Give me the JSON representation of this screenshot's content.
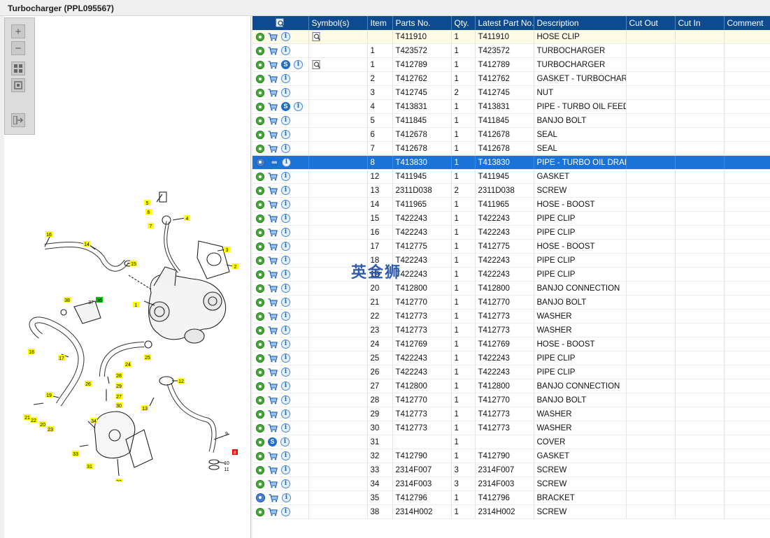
{
  "window": {
    "title": "Turbocharger (PPL095567)"
  },
  "toolbar": {
    "zoom_in": "+",
    "zoom_out": "−"
  },
  "diagram": {
    "callouts": [
      "1",
      "2",
      "3",
      "4",
      "5",
      "6",
      "7",
      "8",
      "9",
      "10",
      "11",
      "12",
      "13",
      "14",
      "15",
      "16",
      "17",
      "18",
      "19",
      "20",
      "21",
      "22",
      "23",
      "24",
      "25",
      "26",
      "27",
      "28",
      "29",
      "30",
      "31",
      "32",
      "33",
      "34",
      "36",
      "37",
      "38"
    ],
    "callout_color_default": "#ffff00",
    "callout_color_highlight": "#00cc00",
    "callout_color_selected": "#ff0000"
  },
  "grid": {
    "columns": [
      "",
      "Symbol(s)",
      "Item",
      "Parts No.",
      "Qty.",
      "Latest Part No.",
      "Description",
      "Cut Out",
      "Cut In",
      "Comment"
    ],
    "rows": [
      {
        "icons": "gear,cart,info",
        "symbol": "mag",
        "item": "",
        "part": "T411910",
        "qty": "1",
        "latest": "T411910",
        "desc": "HOSE CLIP"
      },
      {
        "icons": "gear,cart,info",
        "symbol": "",
        "item": "1",
        "part": "T423572",
        "qty": "1",
        "latest": "T423572",
        "desc": "TURBOCHARGER"
      },
      {
        "icons": "gear,cart,s,info",
        "symbol": "mag",
        "item": "1",
        "part": "T412789",
        "qty": "1",
        "latest": "T412789",
        "desc": "TURBOCHARGER"
      },
      {
        "icons": "gear,cart,info",
        "symbol": "",
        "item": "2",
        "part": "T412762",
        "qty": "1",
        "latest": "T412762",
        "desc": "GASKET - TURBOCHARGER"
      },
      {
        "icons": "gear,cart,info",
        "symbol": "",
        "item": "3",
        "part": "T412745",
        "qty": "2",
        "latest": "T412745",
        "desc": "NUT"
      },
      {
        "icons": "gear,cart,s,info",
        "symbol": "",
        "item": "4",
        "part": "T413831",
        "qty": "1",
        "latest": "T413831",
        "desc": "PIPE - TURBO OIL FEED"
      },
      {
        "icons": "gear,cart,info",
        "symbol": "",
        "item": "5",
        "part": "T411845",
        "qty": "1",
        "latest": "T411845",
        "desc": "BANJO BOLT"
      },
      {
        "icons": "gear,cart,info",
        "symbol": "",
        "item": "6",
        "part": "T412678",
        "qty": "1",
        "latest": "T412678",
        "desc": "SEAL"
      },
      {
        "icons": "gear,cart,info",
        "symbol": "",
        "item": "7",
        "part": "T412678",
        "qty": "1",
        "latest": "T412678",
        "desc": "SEAL"
      },
      {
        "icons": "gear2,cart,info",
        "symbol": "",
        "item": "8",
        "part": "T413830",
        "qty": "1",
        "latest": "T413830",
        "desc": "PIPE - TURBO OIL DRAIN",
        "selected": true
      },
      {
        "icons": "gear,cart,info",
        "symbol": "",
        "item": "12",
        "part": "T411945",
        "qty": "1",
        "latest": "T411945",
        "desc": "GASKET"
      },
      {
        "icons": "gear,cart,info",
        "symbol": "",
        "item": "13",
        "part": "2311D038",
        "qty": "2",
        "latest": "2311D038",
        "desc": "SCREW"
      },
      {
        "icons": "gear,cart,info",
        "symbol": "",
        "item": "14",
        "part": "T411965",
        "qty": "1",
        "latest": "T411965",
        "desc": "HOSE - BOOST"
      },
      {
        "icons": "gear,cart,info",
        "symbol": "",
        "item": "15",
        "part": "T422243",
        "qty": "1",
        "latest": "T422243",
        "desc": "PIPE CLIP"
      },
      {
        "icons": "gear,cart,info",
        "symbol": "",
        "item": "16",
        "part": "T422243",
        "qty": "1",
        "latest": "T422243",
        "desc": "PIPE CLIP"
      },
      {
        "icons": "gear,cart,info",
        "symbol": "",
        "item": "17",
        "part": "T412775",
        "qty": "1",
        "latest": "T412775",
        "desc": "HOSE - BOOST"
      },
      {
        "icons": "gear,cart,info",
        "symbol": "",
        "item": "18",
        "part": "T422243",
        "qty": "1",
        "latest": "T422243",
        "desc": "PIPE CLIP"
      },
      {
        "icons": "gear,cart,info",
        "symbol": "",
        "item": "19",
        "part": "T422243",
        "qty": "1",
        "latest": "T422243",
        "desc": "PIPE CLIP"
      },
      {
        "icons": "gear,cart,info",
        "symbol": "",
        "item": "20",
        "part": "T412800",
        "qty": "1",
        "latest": "T412800",
        "desc": "BANJO CONNECTION"
      },
      {
        "icons": "gear,cart,info",
        "symbol": "",
        "item": "21",
        "part": "T412770",
        "qty": "1",
        "latest": "T412770",
        "desc": "BANJO BOLT"
      },
      {
        "icons": "gear,cart,info",
        "symbol": "",
        "item": "22",
        "part": "T412773",
        "qty": "1",
        "latest": "T412773",
        "desc": "WASHER"
      },
      {
        "icons": "gear,cart,info",
        "symbol": "",
        "item": "23",
        "part": "T412773",
        "qty": "1",
        "latest": "T412773",
        "desc": "WASHER"
      },
      {
        "icons": "gear,cart,info",
        "symbol": "",
        "item": "24",
        "part": "T412769",
        "qty": "1",
        "latest": "T412769",
        "desc": "HOSE - BOOST"
      },
      {
        "icons": "gear,cart,info",
        "symbol": "",
        "item": "25",
        "part": "T422243",
        "qty": "1",
        "latest": "T422243",
        "desc": "PIPE CLIP"
      },
      {
        "icons": "gear,cart,info",
        "symbol": "",
        "item": "26",
        "part": "T422243",
        "qty": "1",
        "latest": "T422243",
        "desc": "PIPE CLIP"
      },
      {
        "icons": "gear,cart,info",
        "symbol": "",
        "item": "27",
        "part": "T412800",
        "qty": "1",
        "latest": "T412800",
        "desc": "BANJO CONNECTION"
      },
      {
        "icons": "gear,cart,info",
        "symbol": "",
        "item": "28",
        "part": "T412770",
        "qty": "1",
        "latest": "T412770",
        "desc": "BANJO BOLT"
      },
      {
        "icons": "gear,cart,info",
        "symbol": "",
        "item": "29",
        "part": "T412773",
        "qty": "1",
        "latest": "T412773",
        "desc": "WASHER"
      },
      {
        "icons": "gear,cart,info",
        "symbol": "",
        "item": "30",
        "part": "T412773",
        "qty": "1",
        "latest": "T412773",
        "desc": "WASHER"
      },
      {
        "icons": "gear,s,info",
        "symbol": "",
        "item": "31",
        "part": "",
        "qty": "1",
        "latest": "",
        "desc": "COVER"
      },
      {
        "icons": "gear,cart,info",
        "symbol": "",
        "item": "32",
        "part": "T412790",
        "qty": "1",
        "latest": "T412790",
        "desc": "GASKET"
      },
      {
        "icons": "gear,cart,info",
        "symbol": "",
        "item": "33",
        "part": "2314F007",
        "qty": "3",
        "latest": "2314F007",
        "desc": "SCREW"
      },
      {
        "icons": "gear,cart,info",
        "symbol": "",
        "item": "34",
        "part": "2314F003",
        "qty": "3",
        "latest": "2314F003",
        "desc": "SCREW"
      },
      {
        "icons": "gear2,cart,info",
        "symbol": "",
        "item": "35",
        "part": "T412796",
        "qty": "1",
        "latest": "T412796",
        "desc": "BRACKET"
      },
      {
        "icons": "gear,cart,info",
        "symbol": "",
        "item": "38",
        "part": "2314H002",
        "qty": "1",
        "latest": "2314H002",
        "desc": "SCREW"
      }
    ]
  },
  "watermark": "英金狮"
}
